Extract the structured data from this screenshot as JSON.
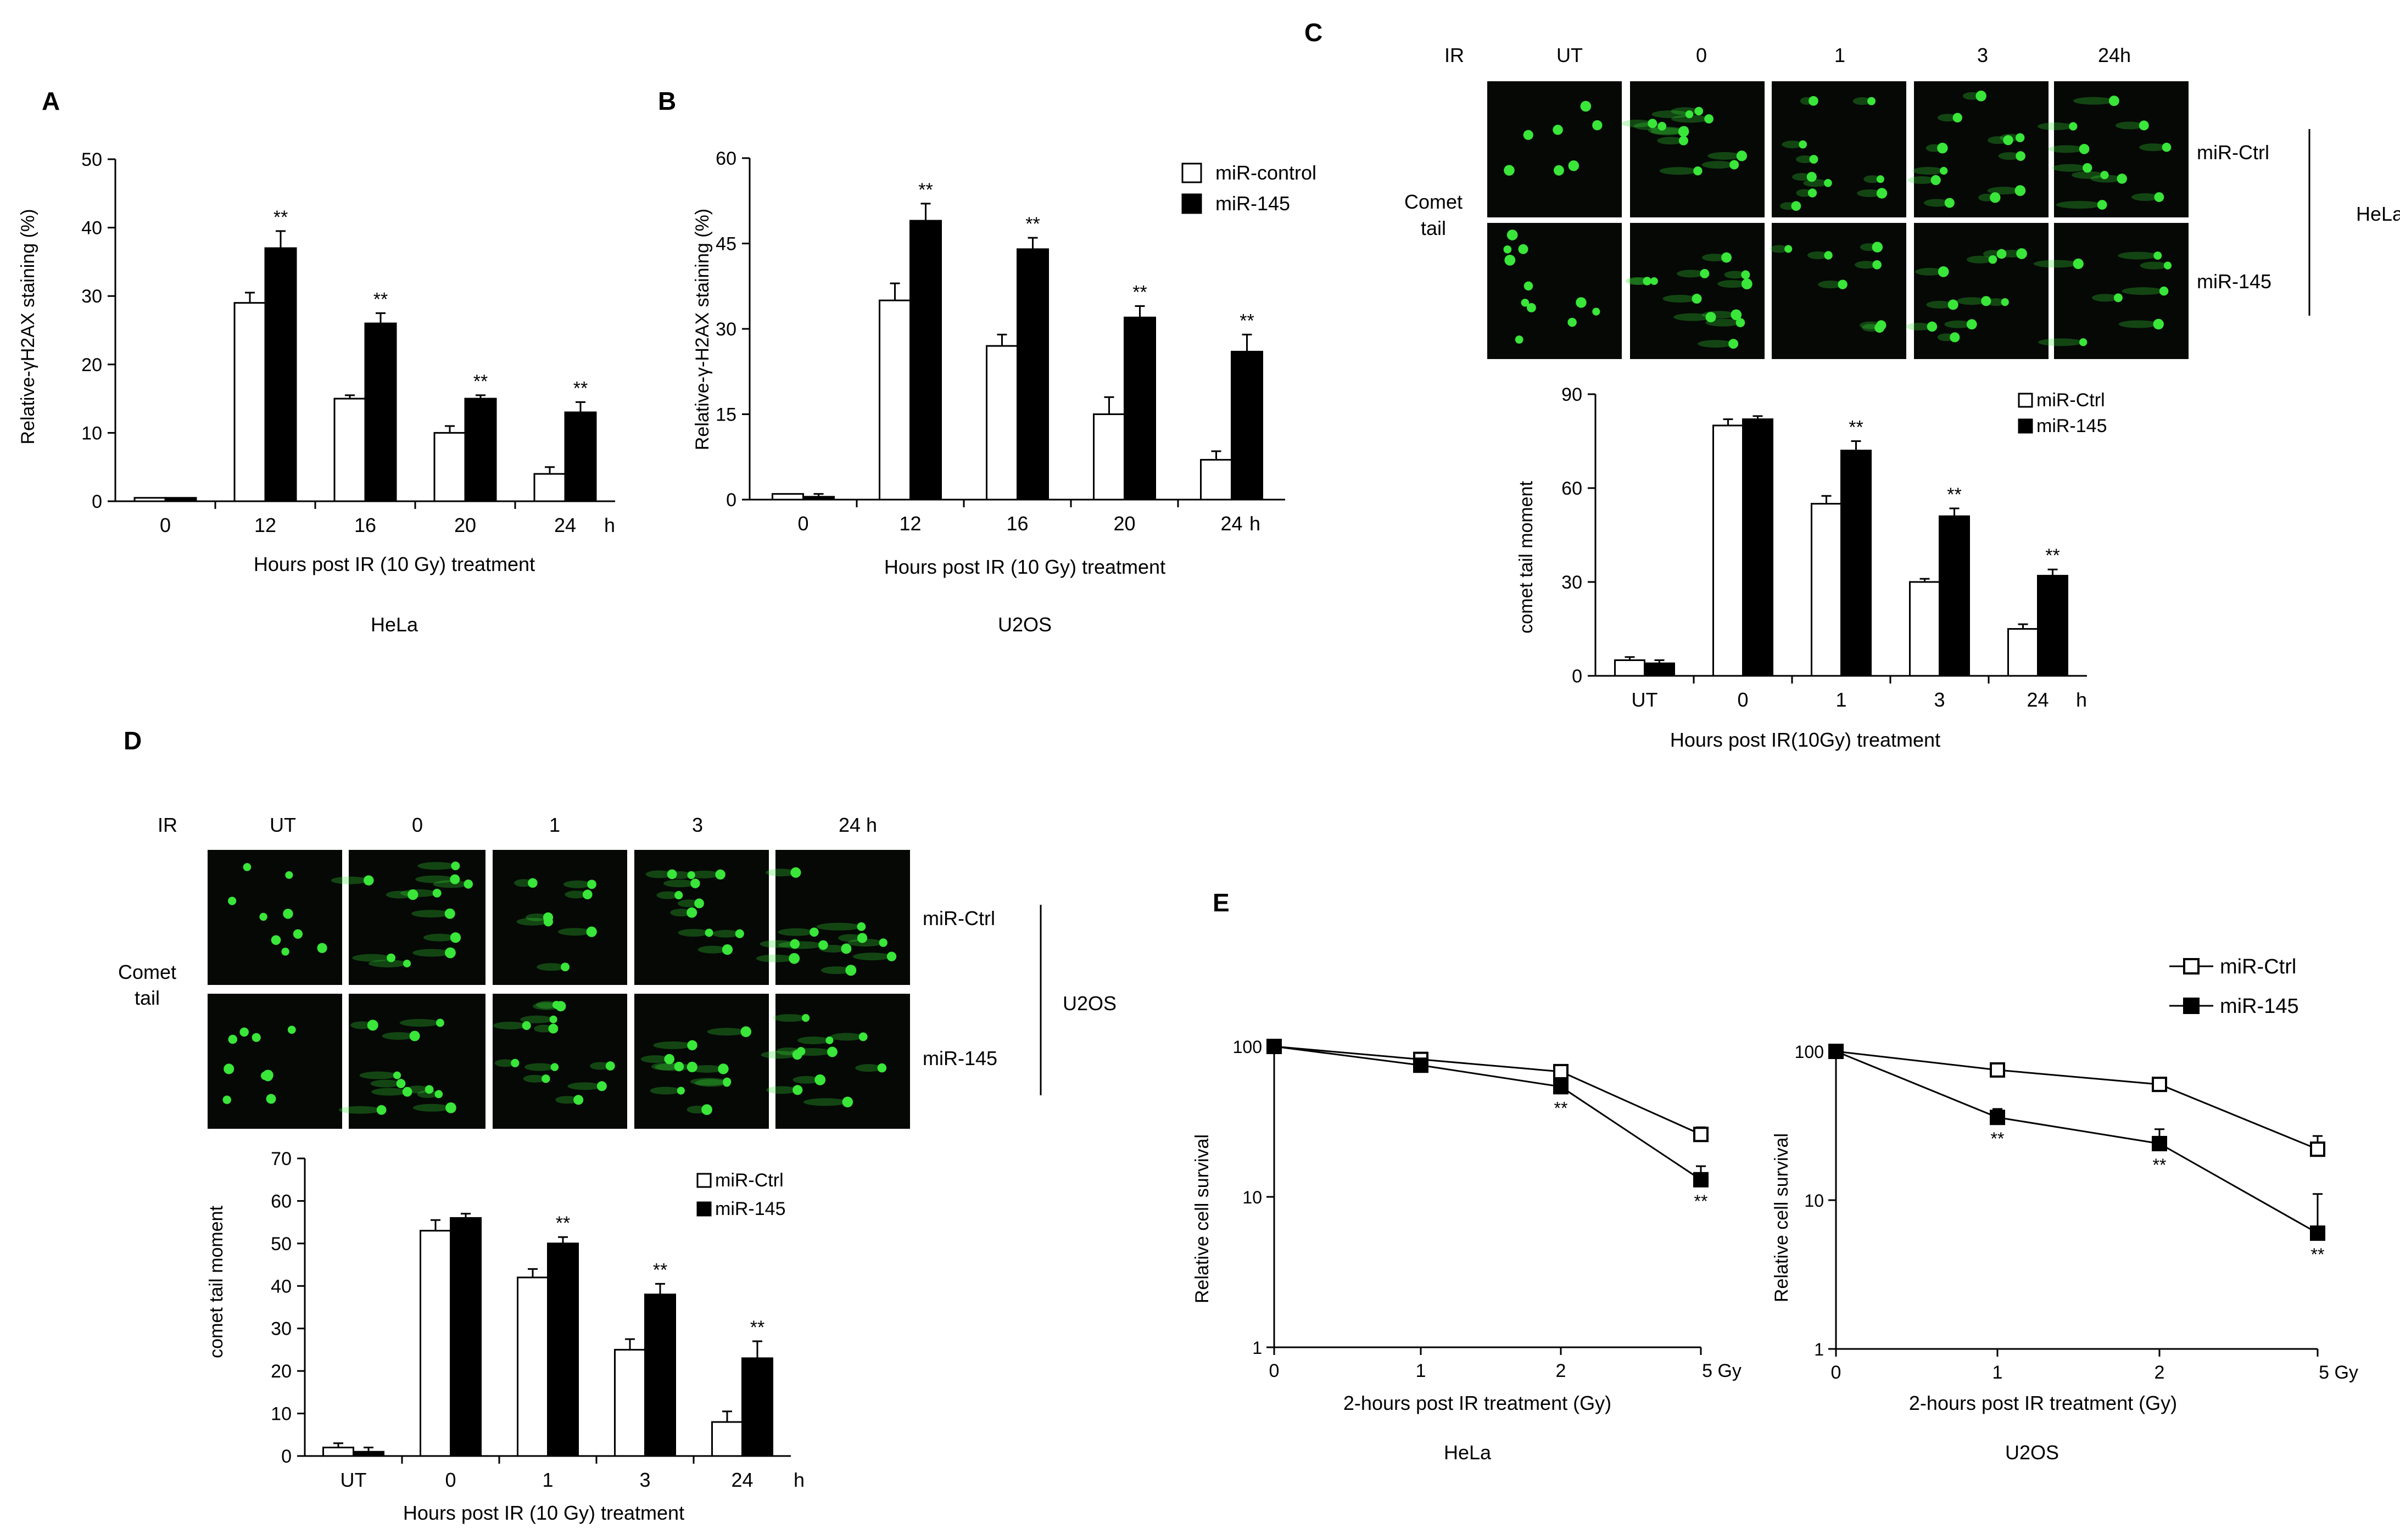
{
  "panels": {
    "A": {
      "letter": "A",
      "cell_line": "HeLa",
      "xlabel": "Hours post IR (10 Gy) treatment",
      "ylabel": "Relative-γH2AX staining (%)",
      "h_unit": "h",
      "y_ticks": [
        "0",
        "10",
        "20",
        "30",
        "40",
        "50"
      ],
      "categories": [
        "0",
        "12",
        "16",
        "20",
        "24"
      ],
      "sig": [
        "",
        "**",
        "**",
        "**",
        "**"
      ]
    },
    "B": {
      "letter": "B",
      "cell_line": "U2OS",
      "xlabel": "Hours post IR (10 Gy) treatment",
      "ylabel": "Relative-γ-H2AX staining (%)",
      "h_unit": "h",
      "y_ticks": [
        "0",
        "15",
        "30",
        "45",
        "60"
      ],
      "categories": [
        "0",
        "12",
        "16",
        "20",
        "24"
      ],
      "sig": [
        "",
        "**",
        "**",
        "**",
        "**"
      ],
      "legend": [
        "miR-control",
        "miR-145"
      ]
    },
    "C": {
      "letter": "C",
      "ir_label": "IR",
      "time_labels": [
        "UT",
        "0",
        "1",
        "3",
        "24h"
      ],
      "row_labels": [
        "miR-Ctrl",
        "miR-145"
      ],
      "side_label": [
        "Comet",
        "tail"
      ],
      "cell_line": "HeLa",
      "xlabel": "Hours post IR(10Gy) treatment",
      "ylabel": "comet tail moment",
      "h_unit": "h",
      "y_ticks": [
        "0",
        "30",
        "60",
        "90"
      ],
      "categories": [
        "UT",
        "0",
        "1",
        "3",
        "24"
      ],
      "sig": [
        "",
        "",
        "**",
        "**",
        "**"
      ],
      "legend": [
        "miR-Ctrl",
        "miR-145"
      ]
    },
    "D": {
      "letter": "D",
      "ir_label": "IR",
      "time_labels": [
        "UT",
        "0",
        "1",
        "3",
        "24  h"
      ],
      "row_labels": [
        "miR-Ctrl",
        "miR-145"
      ],
      "side_label": [
        "Comet",
        "tail"
      ],
      "cell_line": "U2OS",
      "xlabel": "Hours post IR (10 Gy) treatment",
      "ylabel": "comet tail moment",
      "h_unit": "h",
      "y_ticks": [
        "0",
        "10",
        "20",
        "30",
        "40",
        "50",
        "60",
        "70"
      ],
      "categories": [
        "UT",
        "0",
        "1",
        "3",
        "24"
      ],
      "sig": [
        "",
        "",
        "**",
        "**",
        "**"
      ],
      "legend": [
        "miR-Ctrl",
        "miR-145"
      ]
    },
    "E": {
      "letter": "E",
      "legend": [
        "miR-Ctrl",
        "miR-145"
      ],
      "ylabel": "Relative cell survival",
      "xlabel": "2-hours post IR treatment (Gy)",
      "y_ticks": [
        "1",
        "10",
        "100"
      ],
      "x_ticks": [
        "0",
        "1",
        "2",
        "5 Gy"
      ],
      "left_cell_line": "HeLa",
      "right_cell_line": "U2OS"
    }
  },
  "colors": {
    "control_fill": "#ffffff",
    "treated_fill": "#000000",
    "comet_bg": "#050805",
    "comet_green": "#39e639"
  },
  "chart_data": [
    {
      "panel": "A",
      "type": "bar",
      "ylim": [
        0,
        50
      ],
      "categories": [
        "0",
        "12",
        "16",
        "20",
        "24"
      ],
      "series": [
        {
          "name": "miR-control",
          "values": [
            0.5,
            29,
            15,
            10,
            4
          ],
          "errors": [
            0,
            1.5,
            0.5,
            1,
            1
          ]
        },
        {
          "name": "miR-145",
          "values": [
            0.5,
            37,
            26,
            15,
            13
          ],
          "errors": [
            0,
            2.5,
            1.5,
            0.5,
            1.5
          ]
        }
      ]
    },
    {
      "panel": "B",
      "type": "bar",
      "ylim": [
        0,
        60
      ],
      "categories": [
        "0",
        "12",
        "16",
        "20",
        "24"
      ],
      "series": [
        {
          "name": "miR-control",
          "values": [
            1,
            35,
            27,
            15,
            7
          ],
          "errors": [
            0,
            3,
            2,
            3,
            1.5
          ]
        },
        {
          "name": "miR-145",
          "values": [
            0.5,
            49,
            44,
            32,
            26
          ],
          "errors": [
            0.5,
            3,
            2,
            2,
            3
          ]
        }
      ]
    },
    {
      "panel": "C",
      "type": "bar",
      "ylim": [
        0,
        90
      ],
      "categories": [
        "UT",
        "0",
        "1",
        "3",
        "24"
      ],
      "series": [
        {
          "name": "miR-Ctrl",
          "values": [
            5,
            80,
            55,
            30,
            15
          ],
          "errors": [
            1,
            2,
            2.5,
            1,
            1.5
          ]
        },
        {
          "name": "miR-145",
          "values": [
            4,
            82,
            72,
            51,
            32
          ],
          "errors": [
            1,
            1,
            3,
            2.5,
            2
          ]
        }
      ]
    },
    {
      "panel": "D",
      "type": "bar",
      "ylim": [
        0,
        70
      ],
      "categories": [
        "UT",
        "0",
        "1",
        "3",
        "24"
      ],
      "series": [
        {
          "name": "miR-Ctrl",
          "values": [
            2,
            53,
            42,
            25,
            8
          ],
          "errors": [
            1,
            2.5,
            2,
            2.5,
            2.5
          ]
        },
        {
          "name": "miR-145",
          "values": [
            1,
            56,
            50,
            38,
            23
          ],
          "errors": [
            1,
            1,
            1.5,
            2.5,
            4
          ]
        }
      ]
    },
    {
      "panel": "E-left",
      "type": "line",
      "yscale": "log",
      "ylim": [
        1,
        100
      ],
      "x": [
        "0",
        "1",
        "2",
        "5 Gy"
      ],
      "series": [
        {
          "name": "miR-Ctrl",
          "values": [
            100,
            82,
            68,
            26
          ],
          "errors": [
            0,
            4,
            5,
            3
          ]
        },
        {
          "name": "miR-145",
          "values": [
            100,
            75,
            54,
            13
          ],
          "errors": [
            0,
            4,
            5,
            3
          ]
        }
      ],
      "sig": [
        "",
        "",
        "**",
        "**"
      ]
    },
    {
      "panel": "E-right",
      "type": "line",
      "yscale": "log",
      "ylim": [
        1,
        100
      ],
      "x": [
        "0",
        "1",
        "2",
        "5 Gy"
      ],
      "series": [
        {
          "name": "miR-Ctrl",
          "values": [
            100,
            75,
            60,
            22
          ],
          "errors": [
            0,
            8,
            6,
            5
          ]
        },
        {
          "name": "miR-145",
          "values": [
            100,
            36,
            24,
            6
          ],
          "errors": [
            0,
            5,
            6,
            5
          ]
        }
      ],
      "sig": [
        "",
        "**",
        "**",
        "**"
      ]
    }
  ]
}
